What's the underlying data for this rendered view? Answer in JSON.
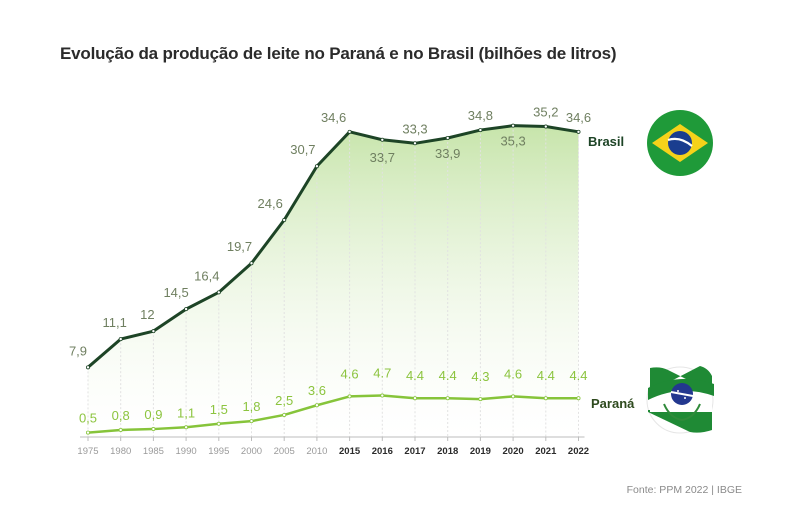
{
  "title": "Evolução da produção de leite no Paraná e no Brasil (bilhões de litros)",
  "source": "Fonte: PPM 2022 | IBGE",
  "colors": {
    "brasil": "#1d4426",
    "parana": "#86c43a",
    "area": "#d6ecc1",
    "brasil_labels": "#6f7f60",
    "parana_labels": "#8cc43f",
    "axis": "#bbbbbb"
  },
  "chart_data": {
    "type": "line",
    "title": "Evolução da produção de leite no Paraná e no Brasil (bilhões de litros)",
    "xlabel": "",
    "ylabel": "",
    "ylim": [
      0,
      36
    ],
    "grid": true,
    "x": [
      "1975",
      "1980",
      "1985",
      "1990",
      "1995",
      "2000",
      "2005",
      "2010",
      "2015",
      "2016",
      "2017",
      "2018",
      "2019",
      "2020",
      "2021",
      "2022"
    ],
    "series": [
      {
        "name": "Brasil",
        "values": [
          7.9,
          11.1,
          12,
          14.5,
          16.4,
          19.7,
          24.6,
          30.7,
          34.6,
          33.7,
          33.3,
          33.9,
          34.8,
          35.3,
          35.2,
          34.6
        ],
        "labels": [
          "7,9",
          "11,1",
          "12",
          "14,5",
          "16,4",
          "19,7",
          "24,6",
          "30,7",
          "34,6",
          "33,7",
          "33,3",
          "33,9",
          "34,8",
          "35,3",
          "35,2",
          "34,6"
        ]
      },
      {
        "name": "Paraná",
        "values": [
          0.5,
          0.8,
          0.9,
          1.1,
          1.5,
          1.8,
          2.5,
          3.6,
          4.6,
          4.7,
          4.4,
          4.4,
          4.3,
          4.6,
          4.4,
          4.4
        ],
        "labels": [
          "0,5",
          "0,8",
          "0,9",
          "1,1",
          "1,5",
          "1,8",
          "2,5",
          "3.6",
          "4.6",
          "4.7",
          "4.4",
          "4.4",
          "4.3",
          "4.6",
          "4.4",
          "4.4"
        ]
      }
    ]
  }
}
